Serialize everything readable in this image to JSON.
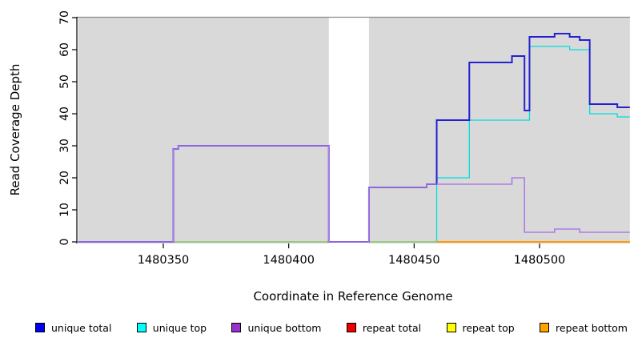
{
  "figure": {
    "background": "#ffffff"
  },
  "plot": {
    "bg_color": "#d9d9d9",
    "top_border_color": "#8a8a8a",
    "axis_color": "#000000",
    "gap_band": {
      "from": 1480416,
      "to": 1480432
    }
  },
  "chart_data": {
    "type": "line",
    "subtype": "step-coverage",
    "title": "",
    "xlabel": "Coordinate in Reference Genome",
    "ylabel": "Read Coverage Depth",
    "xlim": [
      1480316,
      1480536
    ],
    "ylim": [
      0,
      70
    ],
    "x_ticks": [
      1480350,
      1480400,
      1480450,
      1480500
    ],
    "y_ticks": [
      0,
      10,
      20,
      30,
      40,
      50,
      60,
      70
    ],
    "grid": "off",
    "legend_position": "bottom",
    "background_bands": [
      {
        "from": 1480316,
        "to": 1480416,
        "color": "#d9d9d9"
      },
      {
        "from": 1480432,
        "to": 1480536,
        "color": "#d9d9d9"
      }
    ],
    "series": [
      {
        "name": "unique total",
        "color": "#2421cf",
        "legend_color": "#0000ee",
        "width": 2,
        "steps": [
          [
            1480316,
            0
          ],
          [
            1480354,
            29
          ],
          [
            1480356,
            30
          ],
          [
            1480416,
            0
          ],
          [
            1480432,
            17
          ],
          [
            1480455,
            18
          ],
          [
            1480459,
            38
          ],
          [
            1480472,
            56
          ],
          [
            1480489,
            58
          ],
          [
            1480494,
            41
          ],
          [
            1480496,
            64
          ],
          [
            1480506,
            65
          ],
          [
            1480512,
            64
          ],
          [
            1480516,
            63
          ],
          [
            1480520,
            43
          ],
          [
            1480531,
            42
          ],
          [
            1480536,
            42
          ]
        ]
      },
      {
        "name": "unique top",
        "color": "#00dddd",
        "legend_color": "#00ffff",
        "width": 1.3,
        "steps": [
          [
            1480316,
            0
          ],
          [
            1480459,
            20
          ],
          [
            1480472,
            38
          ],
          [
            1480496,
            61
          ],
          [
            1480512,
            60
          ],
          [
            1480520,
            40
          ],
          [
            1480531,
            39
          ],
          [
            1480536,
            39
          ]
        ]
      },
      {
        "name": "unique bottom",
        "color": "#b07ce6",
        "legend_color": "#9932cc",
        "width": 1.6,
        "steps": [
          [
            1480316,
            0
          ],
          [
            1480354,
            29
          ],
          [
            1480356,
            30
          ],
          [
            1480416,
            0
          ],
          [
            1480432,
            17
          ],
          [
            1480455,
            18
          ],
          [
            1480489,
            20
          ],
          [
            1480494,
            3
          ],
          [
            1480506,
            4
          ],
          [
            1480516,
            3
          ],
          [
            1480536,
            3
          ]
        ]
      },
      {
        "name": "repeat total",
        "color": "#dd0000",
        "legend_color": "#ee0000",
        "width": 1.2,
        "steps": [
          [
            1480316,
            0
          ],
          [
            1480536,
            0
          ]
        ]
      },
      {
        "name": "repeat top",
        "color": "#eded00",
        "legend_color": "#ffff00",
        "width": 1.2,
        "steps": [
          [
            1480316,
            0
          ],
          [
            1480536,
            0
          ]
        ]
      },
      {
        "name": "repeat bottom",
        "color": "#ff9900",
        "legend_color": "#ffa500",
        "width": 1.7,
        "steps": [
          [
            1480316,
            0
          ],
          [
            1480536,
            0
          ]
        ]
      }
    ],
    "baseline_overlays": [
      {
        "color": "#8fd48f",
        "from": 1480316,
        "to": 1480459,
        "width": 1.4
      },
      {
        "color": "#ff9900",
        "from": 1480459,
        "to": 1480536,
        "width": 1.7
      }
    ],
    "legend": {
      "items": [
        {
          "label": "unique total",
          "color": "#0000ee"
        },
        {
          "label": "unique top",
          "color": "#00ffff"
        },
        {
          "label": "unique bottom",
          "color": "#9932cc"
        },
        {
          "label": "repeat total",
          "color": "#ee0000"
        },
        {
          "label": "repeat top",
          "color": "#ffff00"
        },
        {
          "label": "repeat bottom",
          "color": "#ffa500"
        }
      ]
    }
  }
}
